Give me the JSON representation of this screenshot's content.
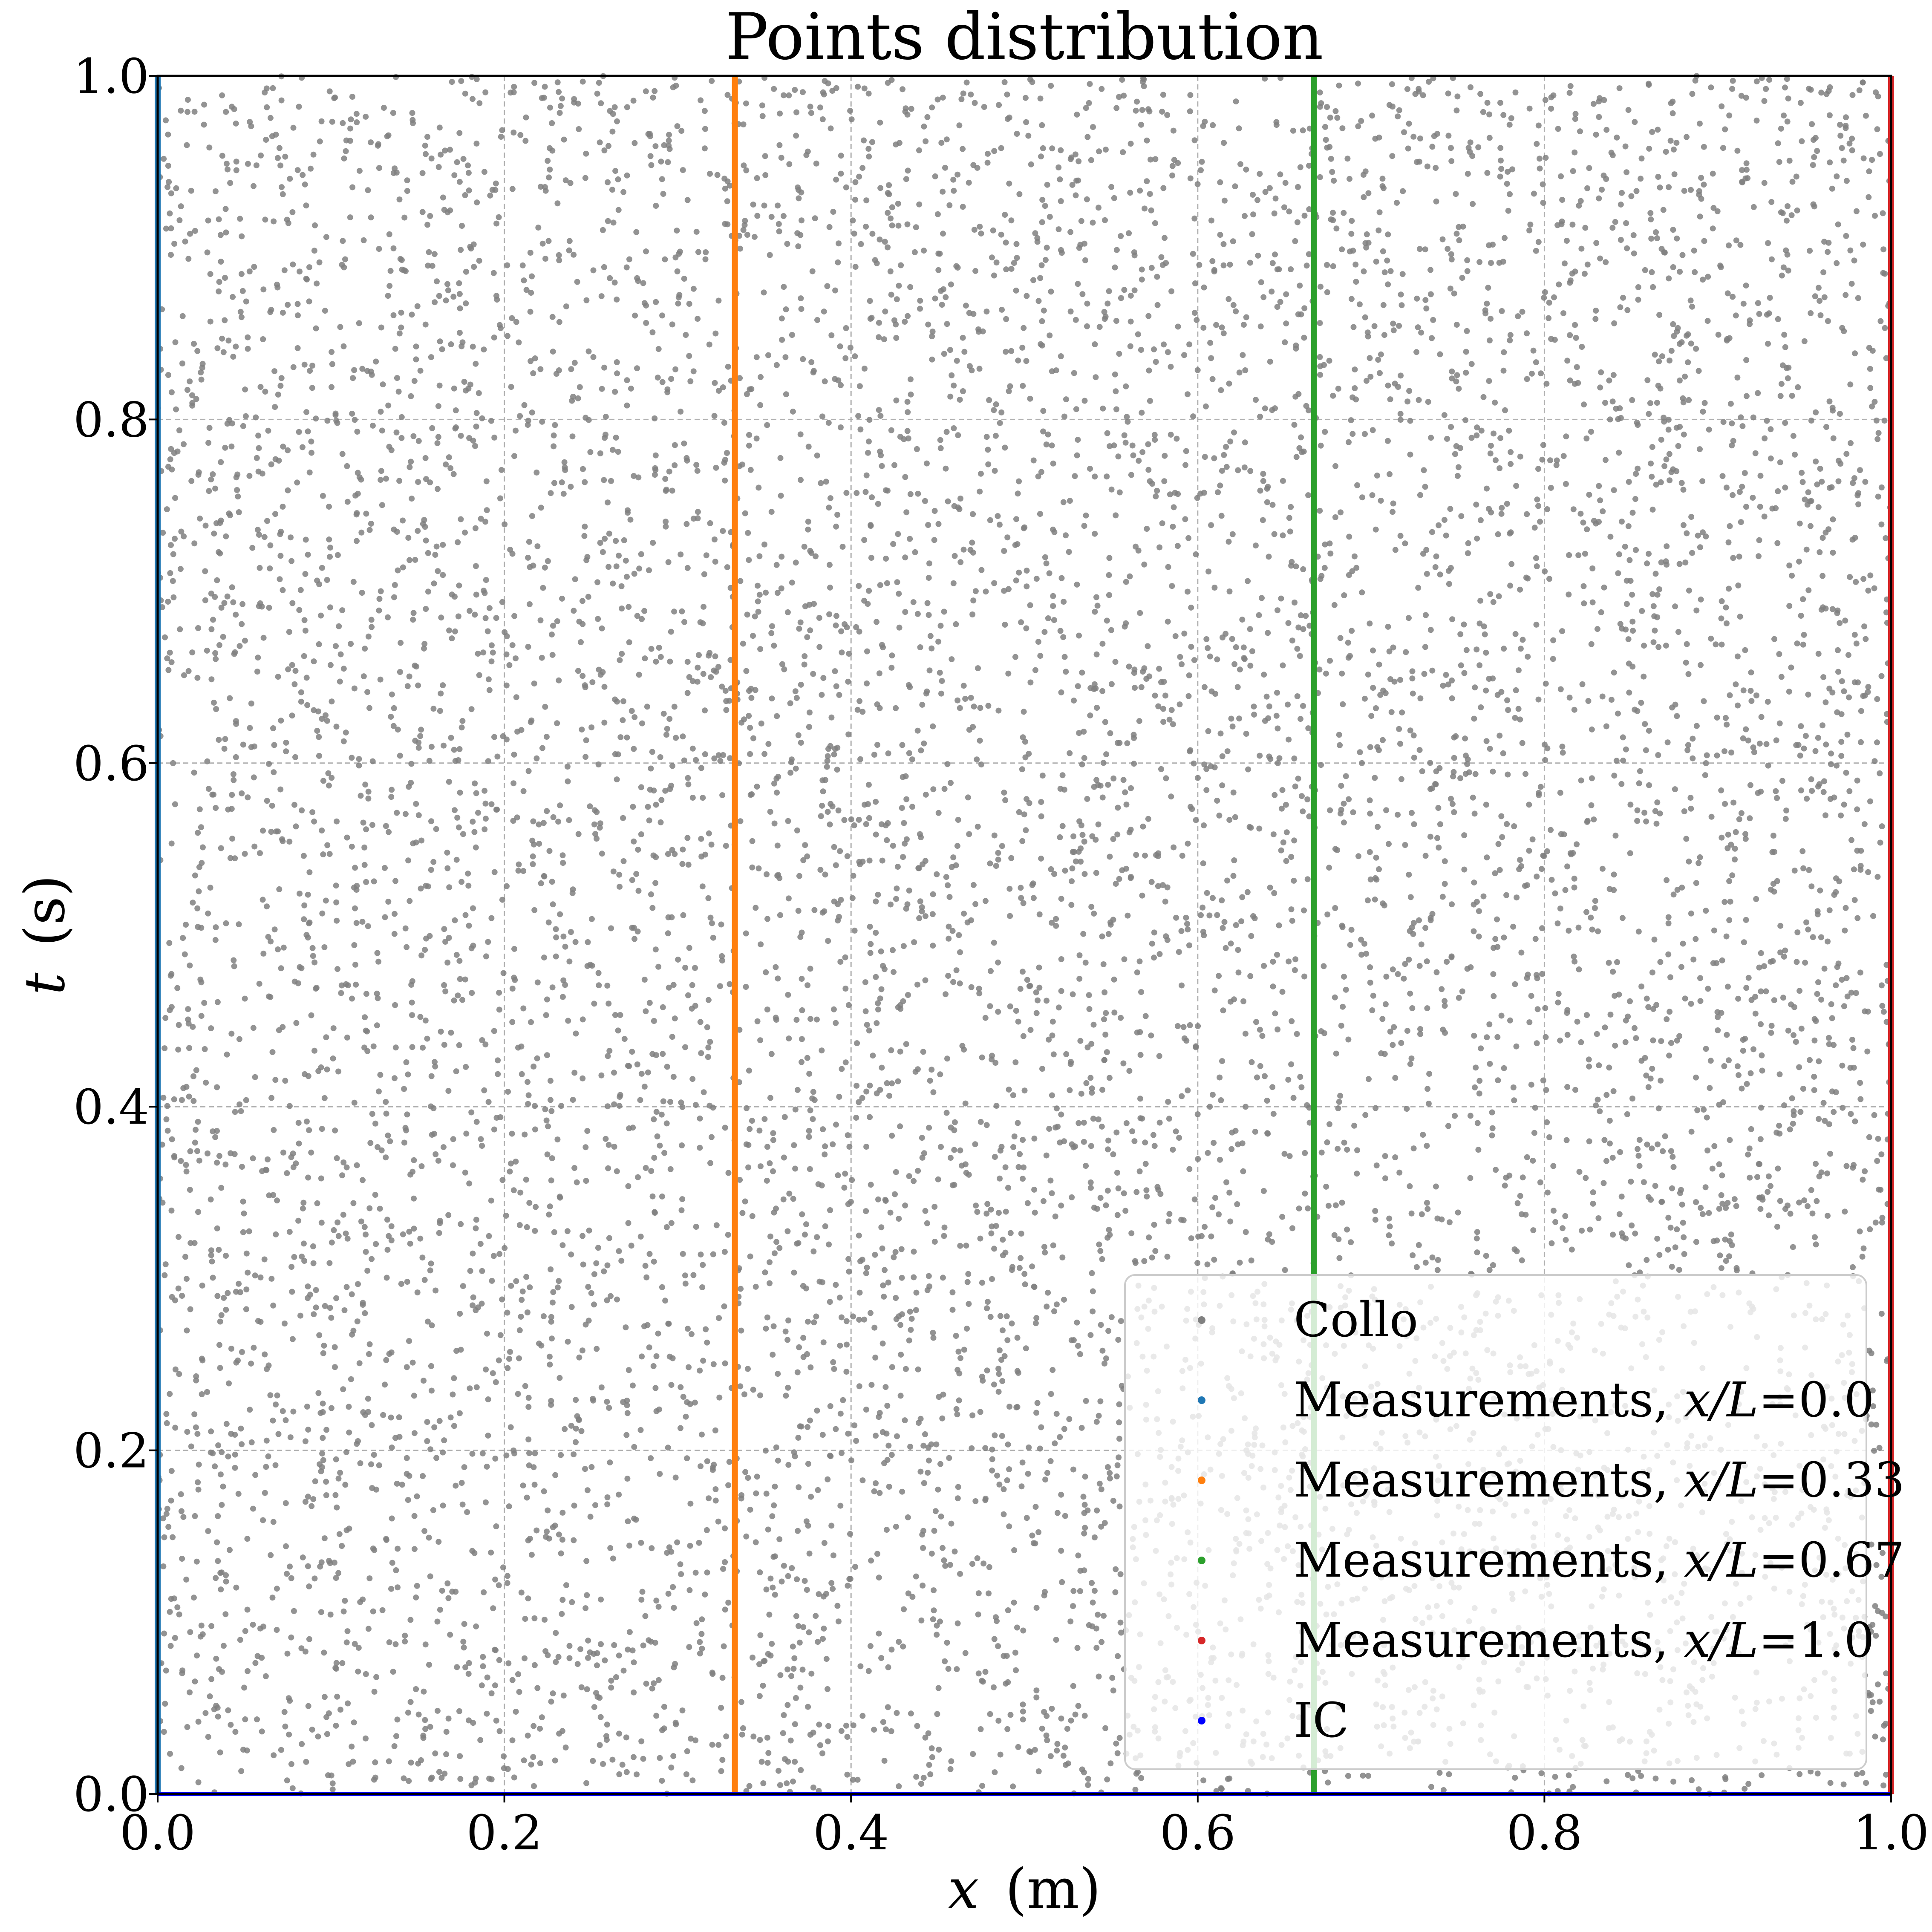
{
  "chart_data": {
    "type": "scatter",
    "title": "Points distribution",
    "xlabel": {
      "var": "x",
      "unit": "(m)"
    },
    "ylabel": {
      "var": "t",
      "unit": "(s)"
    },
    "xlim": [
      0.0,
      1.0
    ],
    "ylim": [
      0.0,
      1.0
    ],
    "xticks": [
      "0.0",
      "0.2",
      "0.4",
      "0.6",
      "0.8",
      "1.0"
    ],
    "yticks": [
      "0.0",
      "0.2",
      "0.4",
      "0.6",
      "0.8",
      "1.0"
    ],
    "grid": true,
    "legend_position": "lower-right",
    "series": [
      {
        "name": "Collo",
        "kind": "random-uniform",
        "color": "#808080",
        "x_range": [
          0.0,
          1.0
        ],
        "t_range": [
          0.0,
          1.0
        ]
      },
      {
        "name": "Measurements, x/L=0.0",
        "legend": {
          "prefix": "Measurements, ",
          "var": "x/L",
          "suffix": "=0.0"
        },
        "kind": "vertical-line",
        "x": 0.0,
        "color": "#1f77b4"
      },
      {
        "name": "Measurements, x/L=0.33",
        "legend": {
          "prefix": "Measurements, ",
          "var": "x/L",
          "suffix": "=0.33"
        },
        "kind": "vertical-line",
        "x": 0.333,
        "color": "#ff7f0e"
      },
      {
        "name": "Measurements, x/L=0.67",
        "legend": {
          "prefix": "Measurements, ",
          "var": "x/L",
          "suffix": "=0.67"
        },
        "kind": "vertical-line",
        "x": 0.667,
        "color": "#2ca02c"
      },
      {
        "name": "Measurements, x/L=1.0",
        "legend": {
          "prefix": "Measurements, ",
          "var": "x/L",
          "suffix": "=1.0"
        },
        "kind": "vertical-line",
        "x": 1.0,
        "color": "#d62728"
      },
      {
        "name": "IC",
        "kind": "horizontal-line",
        "t": 0.0,
        "color": "#0000ff"
      }
    ]
  }
}
